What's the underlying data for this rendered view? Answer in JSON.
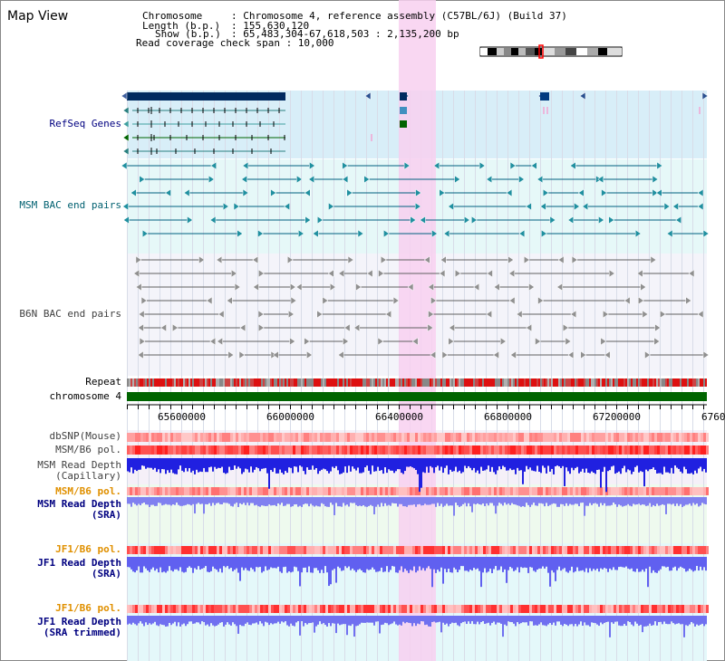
{
  "view": {
    "title": "Map View",
    "chromosome_label": "Chromosome",
    "chromosome_value": ": Chromosome 4, reference assembly (C57BL/6J) (Build 37)",
    "length_label": "Length (b.p.)",
    "length_value": ": 155,630,120",
    "show_label": "Show (b.p.)",
    "show_value": ": 65,483,304-67,618,503 : 2,135,200 bp",
    "coverage_text": "Read coverage check span : 10,000"
  },
  "tracks": {
    "refseq": "RefSeq Genes",
    "msm_bac": "MSM BAC end pairs",
    "b6n_bac": "B6N BAC end pairs",
    "repeat": "Repeat",
    "chromosome": "chromosome 4",
    "dbsnp": "dbSNP(Mouse)",
    "msm_b6_pol": "MSM/B6 pol.",
    "msm_depth_cap_1": "MSM Read Depth",
    "msm_depth_cap_2": "(Capillary)",
    "msm_b6_pol_sra": "MSM/B6 pol.",
    "msm_depth_sra_1": "MSM Read Depth",
    "msm_depth_sra_2": "(SRA)",
    "jf1_b6_pol": "JF1/B6 pol.",
    "jf1_depth_1": "JF1 Read Depth",
    "jf1_depth_2": "(SRA)",
    "jf1_b6_pol_trim": "JF1/B6 pol.",
    "jf1_trim_1": "JF1 Read Depth",
    "jf1_trim_2": "(SRA trimmed)"
  },
  "axis": {
    "ticks": [
      "65600000",
      "66000000",
      "66400000",
      "66800000",
      "67200000",
      "6760"
    ]
  },
  "colors": {
    "label_blue": "#000080",
    "label_teal": "#006070",
    "label_gray": "#404040",
    "label_orange": "#e09000",
    "highlight": "#f8d0f0",
    "refseq_bg": "#d8eef8",
    "msm_bg": "#e6f8f8",
    "chromosome": "#006400"
  }
}
